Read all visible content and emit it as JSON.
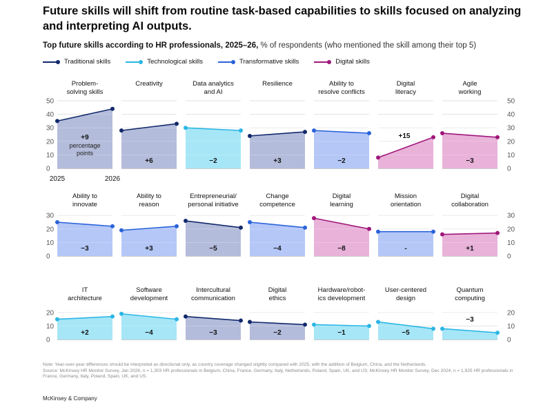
{
  "title": "Future skills will shift from routine task-based capabilities to skills focused on analyzing and interpreting AI outputs.",
  "subtitle_bold": "Top future skills according to HR professionals, 2025–26,",
  "subtitle_rest": " % of respondents (who mentioned the skill among their top 5)",
  "legend": [
    {
      "label": "Traditional skills",
      "color": "#12296b"
    },
    {
      "label": "Technological skills",
      "color": "#2bb6e4"
    },
    {
      "label": "Transformative skills",
      "color": "#2a63d9"
    },
    {
      "label": "Digital skills",
      "color": "#a0177b"
    }
  ],
  "year_labels": [
    "2025",
    "2026"
  ],
  "annotation": "percentage points",
  "note": "Note: Year-over-year differences should be interpreted as directional only, as country coverage changed slightly compared with 2025, with the addition of Belgium, China, and the Netherlands.",
  "source": "Source: McKinsey HR Monitor Survey, Jan 2026, n = 1,303 HR professionals in Belgium, China, France, Germany, Italy, Netherlands, Poland, Spain, UK, and US; McKinsey HR Monitor Survey, Dec 2024, n = 1,925 HR professionals in France, Germany, Italy, Poland, Spain, UK, and US.",
  "brand": "McKinsey & Company",
  "colors": {
    "traditional": {
      "line": "#12296b",
      "fill": "#b4bcdb"
    },
    "technological": {
      "line": "#2bb6e4",
      "fill": "#a6e6f7"
    },
    "transformative": {
      "line": "#2a63d9",
      "fill": "#b4c7f7"
    },
    "digital": {
      "line": "#a0177b",
      "fill": "#e9b2d9"
    }
  },
  "chart_data": [
    {
      "type": "area",
      "ylim": [
        0,
        50
      ],
      "yticks": [
        0,
        10,
        20,
        30,
        40,
        50
      ],
      "x": [
        "2025",
        "2026"
      ],
      "panels": [
        {
          "title": "Problem-\nsolving skills",
          "category": "traditional",
          "values": [
            35,
            44
          ],
          "delta": "+9"
        },
        {
          "title": "Creativity",
          "category": "traditional",
          "values": [
            28,
            33
          ],
          "delta": "+6"
        },
        {
          "title": "Data analytics\nand AI",
          "category": "technological",
          "values": [
            30,
            28
          ],
          "delta": "−2"
        },
        {
          "title": "Resilience",
          "category": "traditional",
          "values": [
            24,
            27
          ],
          "delta": "+3"
        },
        {
          "title": "Ability to\nresolve conflicts",
          "category": "transformative",
          "values": [
            28,
            26
          ],
          "delta": "−2"
        },
        {
          "title": "Digital\nliteracy",
          "category": "digital",
          "values": [
            8,
            23
          ],
          "delta": "+15"
        },
        {
          "title": "Agile\nworking",
          "category": "digital",
          "values": [
            26,
            23
          ],
          "delta": "−3"
        }
      ]
    },
    {
      "type": "area",
      "ylim": [
        0,
        30
      ],
      "yticks": [
        0,
        10,
        20,
        30
      ],
      "x": [
        "2025",
        "2026"
      ],
      "panels": [
        {
          "title": "Ability to\ninnovate",
          "category": "transformative",
          "values": [
            25,
            22
          ],
          "delta": "−3"
        },
        {
          "title": "Ability to\nreason",
          "category": "transformative",
          "values": [
            19,
            22
          ],
          "delta": "+3"
        },
        {
          "title": "Entrepreneurial/\npersonal initiative",
          "category": "traditional",
          "values": [
            26,
            21
          ],
          "delta": "−5"
        },
        {
          "title": "Change\ncompetence",
          "category": "transformative",
          "values": [
            25,
            21
          ],
          "delta": "−4"
        },
        {
          "title": "Digital\nlearning",
          "category": "digital",
          "values": [
            28,
            20
          ],
          "delta": "−8"
        },
        {
          "title": "Mission\norientation",
          "category": "transformative",
          "values": [
            18,
            18
          ],
          "delta": "-"
        },
        {
          "title": "Digital\ncollaboration",
          "category": "digital",
          "values": [
            16,
            17
          ],
          "delta": "+1"
        }
      ]
    },
    {
      "type": "area",
      "ylim": [
        0,
        20
      ],
      "yticks": [
        0,
        10,
        20
      ],
      "x": [
        "2025",
        "2026"
      ],
      "panels": [
        {
          "title": "IT\narchitecture",
          "category": "technological",
          "values": [
            15,
            17
          ],
          "delta": "+2"
        },
        {
          "title": "Software\ndevelopment",
          "category": "technological",
          "values": [
            19,
            15
          ],
          "delta": "−4"
        },
        {
          "title": "Intercultural\ncommunication",
          "category": "traditional",
          "values": [
            17,
            14
          ],
          "delta": "−3"
        },
        {
          "title": "Digital\nethics",
          "category": "traditional",
          "values": [
            13,
            11
          ],
          "delta": "−2"
        },
        {
          "title": "Hardware/robot-\nics development",
          "category": "technological",
          "values": [
            11,
            10
          ],
          "delta": "−1"
        },
        {
          "title": "User-centered\ndesign",
          "category": "technological",
          "values": [
            13,
            8
          ],
          "delta": "−5"
        },
        {
          "title": "Quantum\ncomputing",
          "category": "technological",
          "values": [
            8,
            5
          ],
          "delta": "−3"
        }
      ]
    }
  ]
}
